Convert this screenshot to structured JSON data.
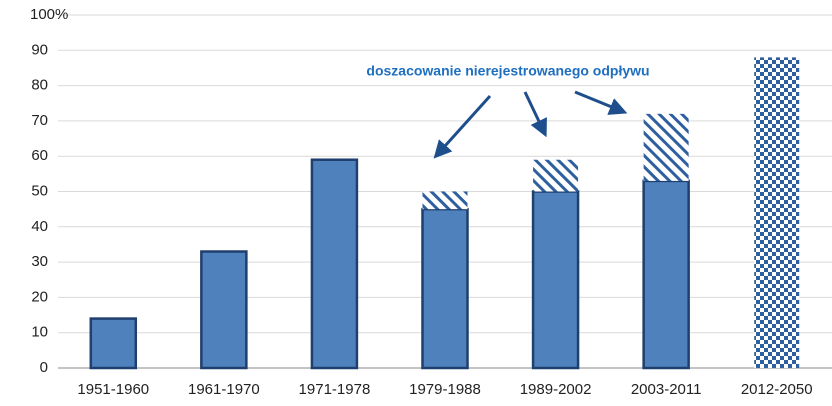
{
  "chart_data": {
    "type": "bar",
    "stacked": true,
    "categories": [
      "1951-1960",
      "1961-1970",
      "1971-1978",
      "1979-1988",
      "1989-2002",
      "2003-2011",
      "2012-2050"
    ],
    "series": [
      {
        "color": "#4f81bd",
        "pattern": "solid",
        "values": [
          14,
          33,
          59,
          45,
          50,
          53,
          null
        ]
      },
      {
        "color": "#2e5f9e",
        "pattern": "hatch",
        "values": [
          null,
          null,
          null,
          5,
          9,
          19,
          null
        ]
      },
      {
        "color": "#2e5f9e",
        "pattern": "check",
        "values": [
          null,
          null,
          null,
          null,
          null,
          null,
          88
        ]
      }
    ],
    "ylim": [
      0,
      100
    ],
    "yticks": [
      0,
      10,
      20,
      30,
      40,
      50,
      60,
      70,
      80,
      90,
      {
        "value": 100,
        "label": "100%"
      }
    ],
    "grid": true,
    "annotation": "doszacowanie nierejestrowanego odpływu"
  }
}
